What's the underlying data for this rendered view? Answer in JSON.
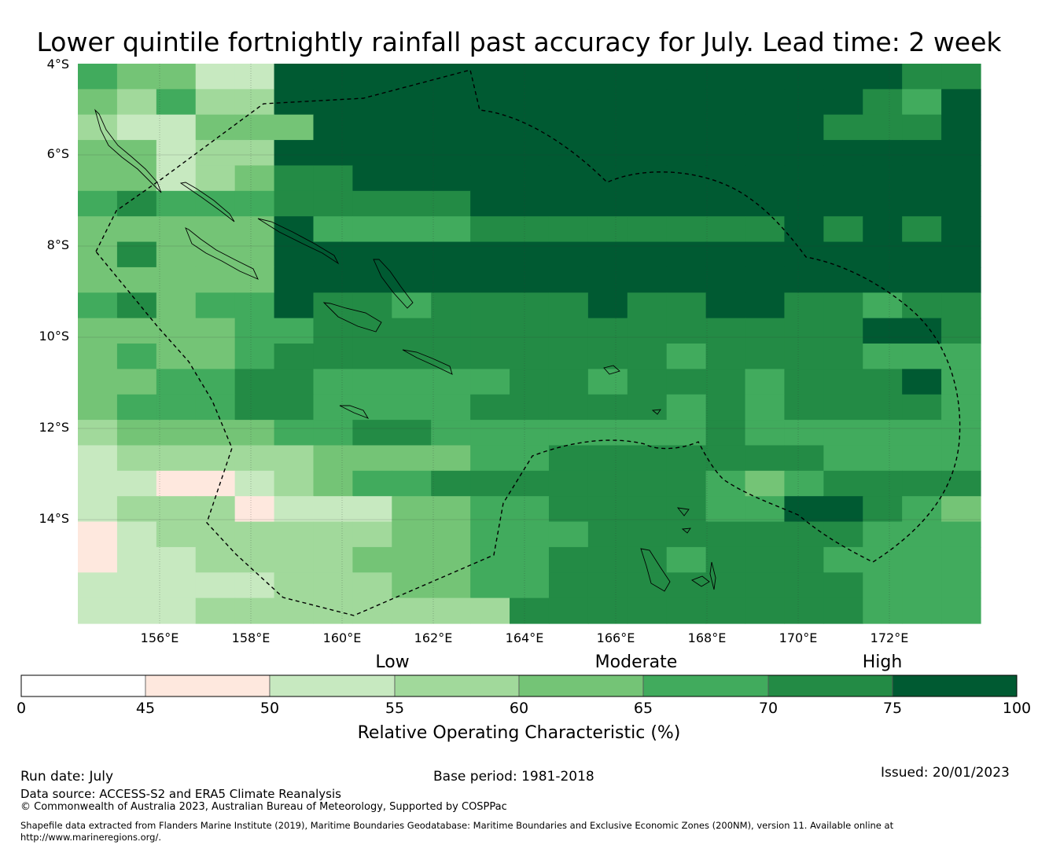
{
  "title": "Lower quintile fortnightly rainfall past accuracy for July. Lead time: 2 week",
  "map": {
    "lon_range": [
      154.2,
      174.0
    ],
    "lat_range": [
      -16.0,
      -4.0
    ],
    "lat_labels": [
      "4°S",
      "6°S",
      "8°S",
      "10°S",
      "12°S",
      "14°S"
    ],
    "lon_labels": [
      "156°E",
      "158°E",
      "160°E",
      "162°E",
      "164°E",
      "166°E",
      "168°E",
      "170°E",
      "172°E"
    ],
    "grid_rows": [
      "54422777777777777777766",
      "43533777777777777777657",
      "32244477777777777776667",
      "44233777777777777777777",
      "44234667777777777777777",
      "56555666667777777777777",
      "44444755556666666676767",
      "46444777777777777777777",
      "44444777777777777777777",
      "56455766566667667766566",
      "44445566666666666666776",
      "45445666666666656666555",
      "44556655555665666566675",
      "45556655556666656566665",
      "34444556655555556555555",
      "23333344445566666665555",
      "22112345566666665456666",
      "23331222445566665577654",
      "12333333445556666666555",
      "12233334445566656665555",
      "22222333445566666666555",
      "22233333333666666666555"
    ],
    "legend_colors": [
      "#ffffff",
      "#fee8de",
      "#c7e9c0",
      "#a1d99b",
      "#74c476",
      "#41ab5d",
      "#238b45",
      "#005a32"
    ]
  },
  "colorbar": {
    "categories": [
      "Low",
      "Moderate",
      "High"
    ],
    "ticks": [
      "0",
      "45",
      "50",
      "55",
      "60",
      "65",
      "70",
      "75",
      "100"
    ],
    "title": "Relative Operating Characteristic (%)"
  },
  "footer": {
    "run_date": "Run date: July",
    "base_period": "Base period: 1981-2018",
    "issued": "Issued: 20/01/2023",
    "data_source": "Data source: ACCESS-S2 and ERA5 Climate Reanalysis",
    "copyright": "© Commonwealth of Australia 2023, Australian Bureau of Meteorology, Supported by COSPPac",
    "shapefile": "Shapefile data extracted from Flanders Marine Institute (2019), Maritime Boundaries Geodatabase: Maritime Boundaries and Exclusive Economic Zones (200NM), version 11. Available online at",
    "url": "http://www.marineregions.org/."
  }
}
